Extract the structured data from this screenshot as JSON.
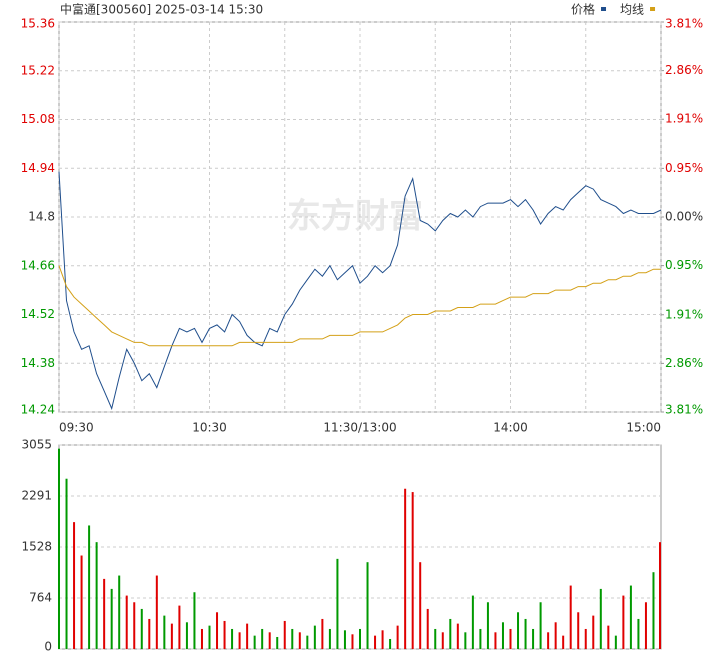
{
  "chart_data": [
    {
      "type": "line",
      "title": "中富通[300560] 2025-03-14 15:30",
      "watermark": "东方财富",
      "x": [
        0,
        3,
        6,
        9,
        12,
        15,
        18,
        21,
        24,
        27,
        30,
        33,
        36,
        39,
        42,
        45,
        48,
        51,
        54,
        57,
        60,
        63,
        66,
        69,
        72,
        75,
        78,
        81,
        84,
        87,
        90,
        93,
        96,
        99,
        102,
        105,
        108,
        111,
        114,
        117,
        120,
        123,
        126,
        129,
        132,
        135,
        138,
        141,
        144,
        147,
        150,
        153,
        156,
        159,
        162,
        165,
        168,
        171,
        174,
        177,
        180,
        183,
        186,
        189,
        192,
        195,
        198,
        201,
        204,
        207,
        210,
        213,
        216,
        219,
        222,
        225,
        228,
        231,
        234,
        237,
        240
      ],
      "xlim": [
        0,
        240
      ],
      "xticks": [
        {
          "value": 0,
          "label": "09:30"
        },
        {
          "value": 60,
          "label": "10:30"
        },
        {
          "value": 120,
          "label": "11:30/13:00"
        },
        {
          "value": 180,
          "label": "14:00"
        },
        {
          "value": 240,
          "label": "15:00"
        }
      ],
      "xminor": [
        30,
        90,
        150,
        210
      ],
      "series": [
        {
          "name": "价格",
          "color": "#1f4e8c",
          "values": [
            14.93,
            14.56,
            14.47,
            14.42,
            14.43,
            14.35,
            14.3,
            14.25,
            14.34,
            14.42,
            14.38,
            14.33,
            14.35,
            14.31,
            14.37,
            14.43,
            14.48,
            14.47,
            14.48,
            14.44,
            14.48,
            14.49,
            14.47,
            14.52,
            14.5,
            14.46,
            14.44,
            14.43,
            14.48,
            14.47,
            14.52,
            14.55,
            14.59,
            14.62,
            14.65,
            14.63,
            14.66,
            14.62,
            14.64,
            14.66,
            14.61,
            14.63,
            14.66,
            14.64,
            14.66,
            14.72,
            14.86,
            14.91,
            14.79,
            14.78,
            14.76,
            14.79,
            14.81,
            14.8,
            14.82,
            14.8,
            14.83,
            14.84,
            14.84,
            14.84,
            14.85,
            14.83,
            14.85,
            14.82,
            14.78,
            14.81,
            14.83,
            14.82,
            14.85,
            14.87,
            14.89,
            14.88,
            14.85,
            14.84,
            14.83,
            14.81,
            14.82,
            14.81,
            14.81,
            14.81,
            14.82
          ]
        },
        {
          "name": "均线",
          "color": "#d4a017",
          "values": [
            14.66,
            14.6,
            14.57,
            14.55,
            14.53,
            14.51,
            14.49,
            14.47,
            14.46,
            14.45,
            14.44,
            14.44,
            14.43,
            14.43,
            14.43,
            14.43,
            14.43,
            14.43,
            14.43,
            14.43,
            14.43,
            14.43,
            14.43,
            14.43,
            14.44,
            14.44,
            14.44,
            14.44,
            14.44,
            14.44,
            14.44,
            14.44,
            14.45,
            14.45,
            14.45,
            14.45,
            14.46,
            14.46,
            14.46,
            14.46,
            14.47,
            14.47,
            14.47,
            14.47,
            14.48,
            14.49,
            14.51,
            14.52,
            14.52,
            14.52,
            14.53,
            14.53,
            14.53,
            14.54,
            14.54,
            14.54,
            14.55,
            14.55,
            14.55,
            14.56,
            14.57,
            14.57,
            14.57,
            14.58,
            14.58,
            14.58,
            14.59,
            14.59,
            14.59,
            14.6,
            14.6,
            14.61,
            14.61,
            14.62,
            14.62,
            14.63,
            14.63,
            14.64,
            14.64,
            14.65,
            14.65
          ]
        }
      ],
      "ylim": [
        14.24,
        15.36
      ],
      "yticks": [
        15.36,
        15.22,
        15.08,
        14.94,
        14.8,
        14.66,
        14.52,
        14.38,
        14.24
      ],
      "base": 14.8,
      "up_color": "#e00000",
      "down_color": "#009900",
      "y2lim": [
        -3.81,
        3.81
      ],
      "y2ticks": [
        {
          "value": 3.81,
          "label": "3.81%"
        },
        {
          "value": 2.86,
          "label": "2.86%"
        },
        {
          "value": 1.91,
          "label": "1.91%"
        },
        {
          "value": 0.95,
          "label": "0.95%"
        },
        {
          "value": 0,
          "label": "0.00%"
        },
        {
          "value": -0.95,
          "label": "0.95%"
        },
        {
          "value": -1.91,
          "label": "1.91%"
        },
        {
          "value": -2.86,
          "label": "2.86%"
        },
        {
          "value": -3.81,
          "label": "3.81%"
        }
      ],
      "grid": true
    },
    {
      "type": "bar",
      "values": [
        3000,
        2550,
        1900,
        1400,
        1850,
        1600,
        1050,
        900,
        1100,
        800,
        700,
        600,
        450,
        1100,
        500,
        380,
        650,
        400,
        850,
        300,
        350,
        550,
        420,
        300,
        250,
        380,
        200,
        300,
        250,
        180,
        420,
        300,
        250,
        200,
        350,
        450,
        300,
        1350,
        280,
        220,
        300,
        1300,
        200,
        280,
        150,
        350,
        2400,
        2350,
        1300,
        600,
        300,
        250,
        450,
        380,
        250,
        800,
        300,
        700,
        250,
        400,
        300,
        550,
        450,
        300,
        700,
        250,
        400,
        200,
        950,
        550,
        300,
        500,
        900,
        350,
        200,
        800,
        950,
        450,
        700,
        1150,
        1600
      ],
      "colors": [
        "#009900",
        "#009900",
        "#e00000",
        "#e00000",
        "#009900",
        "#009900",
        "#e00000",
        "#009900",
        "#009900",
        "#e00000",
        "#e00000",
        "#009900",
        "#e00000",
        "#e00000",
        "#009900",
        "#e00000",
        "#e00000",
        "#009900",
        "#009900",
        "#e00000",
        "#009900",
        "#e00000",
        "#e00000",
        "#009900",
        "#e00000",
        "#e00000",
        "#009900",
        "#009900",
        "#e00000",
        "#009900",
        "#e00000",
        "#009900",
        "#e00000",
        "#009900",
        "#009900",
        "#e00000",
        "#009900",
        "#009900",
        "#009900",
        "#e00000",
        "#009900",
        "#009900",
        "#e00000",
        "#e00000",
        "#009900",
        "#e00000",
        "#e00000",
        "#e00000",
        "#e00000",
        "#e00000",
        "#009900",
        "#e00000",
        "#009900",
        "#e00000",
        "#009900",
        "#009900",
        "#009900",
        "#009900",
        "#e00000",
        "#009900",
        "#e00000",
        "#009900",
        "#009900",
        "#009900",
        "#009900",
        "#e00000",
        "#e00000",
        "#e00000",
        "#e00000",
        "#e00000",
        "#e00000",
        "#e00000",
        "#009900",
        "#e00000",
        "#009900",
        "#e00000",
        "#009900",
        "#009900",
        "#e00000",
        "#009900",
        "#e00000"
      ],
      "ylim": [
        0,
        3055
      ],
      "yticks": [
        3055,
        2291,
        1528,
        764,
        0
      ],
      "grid": true
    }
  ]
}
